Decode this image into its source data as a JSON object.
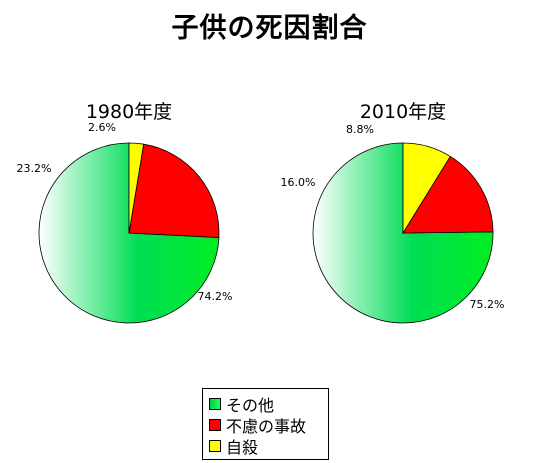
{
  "title": "子供の死因割合",
  "legend": [
    {
      "label": "その他",
      "color": "#00dd44"
    },
    {
      "label": "不慮の事故",
      "color": "#ff0000"
    },
    {
      "label": "自殺",
      "color": "#ffff00"
    }
  ],
  "chart_data": [
    {
      "type": "pie",
      "title": "1980年度",
      "categories": [
        "その他",
        "不慮の事故",
        "自殺"
      ],
      "values": [
        74.2,
        23.2,
        2.6
      ],
      "labels": [
        "74.2%",
        "23.2%",
        "2.6%"
      ],
      "colors": [
        "#00dd44",
        "#ff0000",
        "#ffff00"
      ]
    },
    {
      "type": "pie",
      "title": "2010年度",
      "categories": [
        "その他",
        "不慮の事故",
        "自殺"
      ],
      "values": [
        75.2,
        16.0,
        8.8
      ],
      "labels": [
        "75.2%",
        "16.0%",
        "8.8%"
      ],
      "colors": [
        "#00dd44",
        "#ff0000",
        "#ffff00"
      ]
    }
  ]
}
